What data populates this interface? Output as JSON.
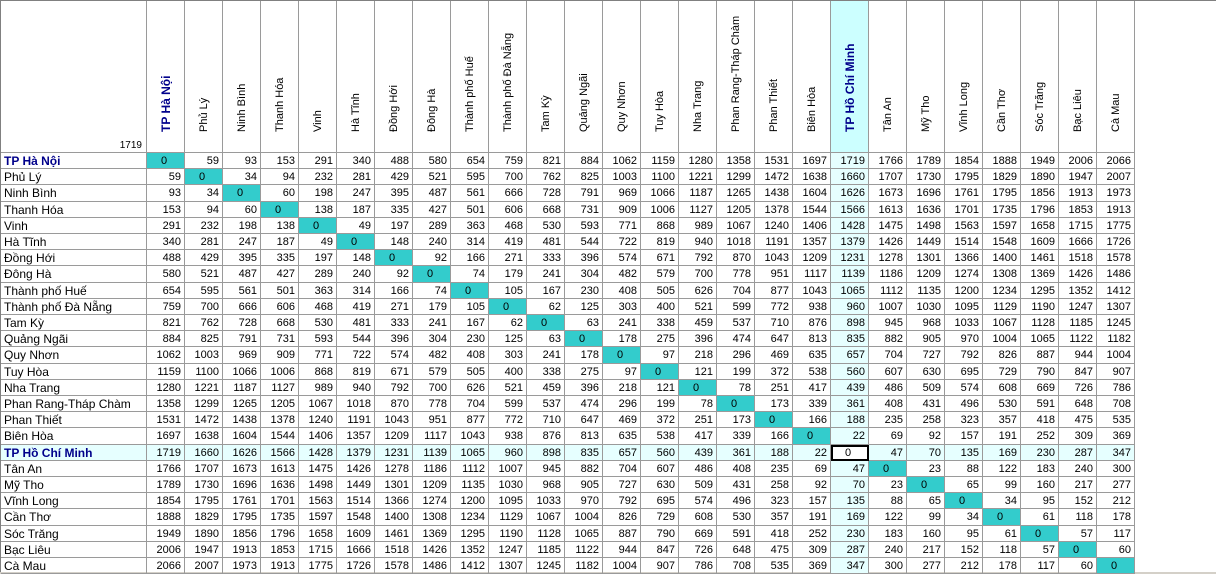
{
  "corner_value": "1719",
  "cities": [
    "TP Hà Nội",
    "Phủ Lý",
    "Ninh Bình",
    "Thanh Hóa",
    "Vinh",
    "Hà Tĩnh",
    "Đồng Hới",
    "Đông Hà",
    "Thành phố Huế",
    "Thành phố Đà Nẵng",
    "Tam Kỳ",
    "Quảng Ngãi",
    "Quy Nhơn",
    "Tuy Hòa",
    "Nha Trang",
    "Phan Rang-Tháp Chàm",
    "Phan Thiết",
    "Biên Hòa",
    "TP Hồ Chí Minh",
    "Tân An",
    "Mỹ Tho",
    "Vĩnh Long",
    "Cần Thơ",
    "Sóc Trăng",
    "Bạc Liêu",
    "Cà Mau"
  ],
  "matrix": [
    [
      0,
      59,
      93,
      153,
      291,
      340,
      488,
      580,
      654,
      759,
      821,
      884,
      1062,
      1159,
      1280,
      1358,
      1531,
      1697,
      1719,
      1766,
      1789,
      1854,
      1888,
      1949,
      2006,
      2066
    ],
    [
      59,
      0,
      34,
      94,
      232,
      281,
      429,
      521,
      595,
      700,
      762,
      825,
      1003,
      1100,
      1221,
      1299,
      1472,
      1638,
      1660,
      1707,
      1730,
      1795,
      1829,
      1890,
      1947,
      2007
    ],
    [
      93,
      34,
      0,
      60,
      198,
      247,
      395,
      487,
      561,
      666,
      728,
      791,
      969,
      1066,
      1187,
      1265,
      1438,
      1604,
      1626,
      1673,
      1696,
      1761,
      1795,
      1856,
      1913,
      1973
    ],
    [
      153,
      94,
      60,
      0,
      138,
      187,
      335,
      427,
      501,
      606,
      668,
      731,
      909,
      1006,
      1127,
      1205,
      1378,
      1544,
      1566,
      1613,
      1636,
      1701,
      1735,
      1796,
      1853,
      1913
    ],
    [
      291,
      232,
      198,
      138,
      0,
      49,
      197,
      289,
      363,
      468,
      530,
      593,
      771,
      868,
      989,
      1067,
      1240,
      1406,
      1428,
      1475,
      1498,
      1563,
      1597,
      1658,
      1715,
      1775
    ],
    [
      340,
      281,
      247,
      187,
      49,
      0,
      148,
      240,
      314,
      419,
      481,
      544,
      722,
      819,
      940,
      1018,
      1191,
      1357,
      1379,
      1426,
      1449,
      1514,
      1548,
      1609,
      1666,
      1726
    ],
    [
      488,
      429,
      395,
      335,
      197,
      148,
      0,
      92,
      166,
      271,
      333,
      396,
      574,
      671,
      792,
      870,
      1043,
      1209,
      1231,
      1278,
      1301,
      1366,
      1400,
      1461,
      1518,
      1578
    ],
    [
      580,
      521,
      487,
      427,
      289,
      240,
      92,
      0,
      74,
      179,
      241,
      304,
      482,
      579,
      700,
      778,
      951,
      1117,
      1139,
      1186,
      1209,
      1274,
      1308,
      1369,
      1426,
      1486
    ],
    [
      654,
      595,
      561,
      501,
      363,
      314,
      166,
      74,
      0,
      105,
      167,
      230,
      408,
      505,
      626,
      704,
      877,
      1043,
      1065,
      1112,
      1135,
      1200,
      1234,
      1295,
      1352,
      1412
    ],
    [
      759,
      700,
      666,
      606,
      468,
      419,
      271,
      179,
      105,
      0,
      62,
      125,
      303,
      400,
      521,
      599,
      772,
      938,
      960,
      1007,
      1030,
      1095,
      1129,
      1190,
      1247,
      1307
    ],
    [
      821,
      762,
      728,
      668,
      530,
      481,
      333,
      241,
      167,
      62,
      0,
      63,
      241,
      338,
      459,
      537,
      710,
      876,
      898,
      945,
      968,
      1033,
      1067,
      1128,
      1185,
      1245
    ],
    [
      884,
      825,
      791,
      731,
      593,
      544,
      396,
      304,
      230,
      125,
      63,
      0,
      178,
      275,
      396,
      474,
      647,
      813,
      835,
      882,
      905,
      970,
      1004,
      1065,
      1122,
      1182
    ],
    [
      1062,
      1003,
      969,
      909,
      771,
      722,
      574,
      482,
      408,
      303,
      241,
      178,
      0,
      97,
      218,
      296,
      469,
      635,
      657,
      704,
      727,
      792,
      826,
      887,
      944,
      1004
    ],
    [
      1159,
      1100,
      1066,
      1006,
      868,
      819,
      671,
      579,
      505,
      400,
      338,
      275,
      97,
      0,
      121,
      199,
      372,
      538,
      560,
      607,
      630,
      695,
      729,
      790,
      847,
      907
    ],
    [
      1280,
      1221,
      1187,
      1127,
      989,
      940,
      792,
      700,
      626,
      521,
      459,
      396,
      218,
      121,
      0,
      78,
      251,
      417,
      439,
      486,
      509,
      574,
      608,
      669,
      726,
      786
    ],
    [
      1358,
      1299,
      1265,
      1205,
      1067,
      1018,
      870,
      778,
      704,
      599,
      537,
      474,
      296,
      199,
      78,
      0,
      173,
      339,
      361,
      408,
      431,
      496,
      530,
      591,
      648,
      708
    ],
    [
      1531,
      1472,
      1438,
      1378,
      1240,
      1191,
      1043,
      951,
      877,
      772,
      710,
      647,
      469,
      372,
      251,
      173,
      0,
      166,
      188,
      235,
      258,
      323,
      357,
      418,
      475,
      535
    ],
    [
      1697,
      1638,
      1604,
      1544,
      1406,
      1357,
      1209,
      1117,
      1043,
      938,
      876,
      813,
      635,
      538,
      417,
      339,
      166,
      0,
      22,
      69,
      92,
      157,
      191,
      252,
      309,
      369
    ],
    [
      1719,
      1660,
      1626,
      1566,
      1428,
      1379,
      1231,
      1139,
      1065,
      960,
      898,
      835,
      657,
      560,
      439,
      361,
      188,
      22,
      0,
      47,
      70,
      135,
      169,
      230,
      287,
      347
    ],
    [
      1766,
      1707,
      1673,
      1613,
      1475,
      1426,
      1278,
      1186,
      1112,
      1007,
      945,
      882,
      704,
      607,
      486,
      408,
      235,
      69,
      47,
      0,
      23,
      88,
      122,
      183,
      240,
      300
    ],
    [
      1789,
      1730,
      1696,
      1636,
      1498,
      1449,
      1301,
      1209,
      1135,
      1030,
      968,
      905,
      727,
      630,
      509,
      431,
      258,
      92,
      70,
      23,
      0,
      65,
      99,
      160,
      217,
      277
    ],
    [
      1854,
      1795,
      1761,
      1701,
      1563,
      1514,
      1366,
      1274,
      1200,
      1095,
      1033,
      970,
      792,
      695,
      574,
      496,
      323,
      157,
      135,
      88,
      65,
      0,
      34,
      95,
      152,
      212
    ],
    [
      1888,
      1829,
      1795,
      1735,
      1597,
      1548,
      1400,
      1308,
      1234,
      1129,
      1067,
      1004,
      826,
      729,
      608,
      530,
      357,
      191,
      169,
      122,
      99,
      34,
      0,
      61,
      118,
      178
    ],
    [
      1949,
      1890,
      1856,
      1796,
      1658,
      1609,
      1461,
      1369,
      1295,
      1190,
      1128,
      1065,
      887,
      790,
      669,
      591,
      418,
      252,
      230,
      183,
      160,
      95,
      61,
      0,
      57,
      117
    ],
    [
      2006,
      1947,
      1913,
      1853,
      1715,
      1666,
      1518,
      1426,
      1352,
      1247,
      1185,
      1122,
      944,
      847,
      726,
      648,
      475,
      309,
      287,
      240,
      217,
      152,
      118,
      57,
      0,
      60
    ],
    [
      2066,
      2007,
      1973,
      1913,
      1775,
      1726,
      1578,
      1486,
      1412,
      1307,
      1245,
      1182,
      1004,
      907,
      786,
      708,
      535,
      369,
      347,
      300,
      277,
      212,
      178,
      117,
      60,
      0
    ]
  ],
  "highlight": {
    "row_index": 18,
    "col_index": 18,
    "bold_row_index": 0,
    "bold_col_index": 0,
    "selected_row": 18,
    "selected_col": 18
  },
  "colors": {
    "diagonal": "#33cccc",
    "highlight_band": "#e6ffff",
    "bold_header": "#00008b"
  }
}
